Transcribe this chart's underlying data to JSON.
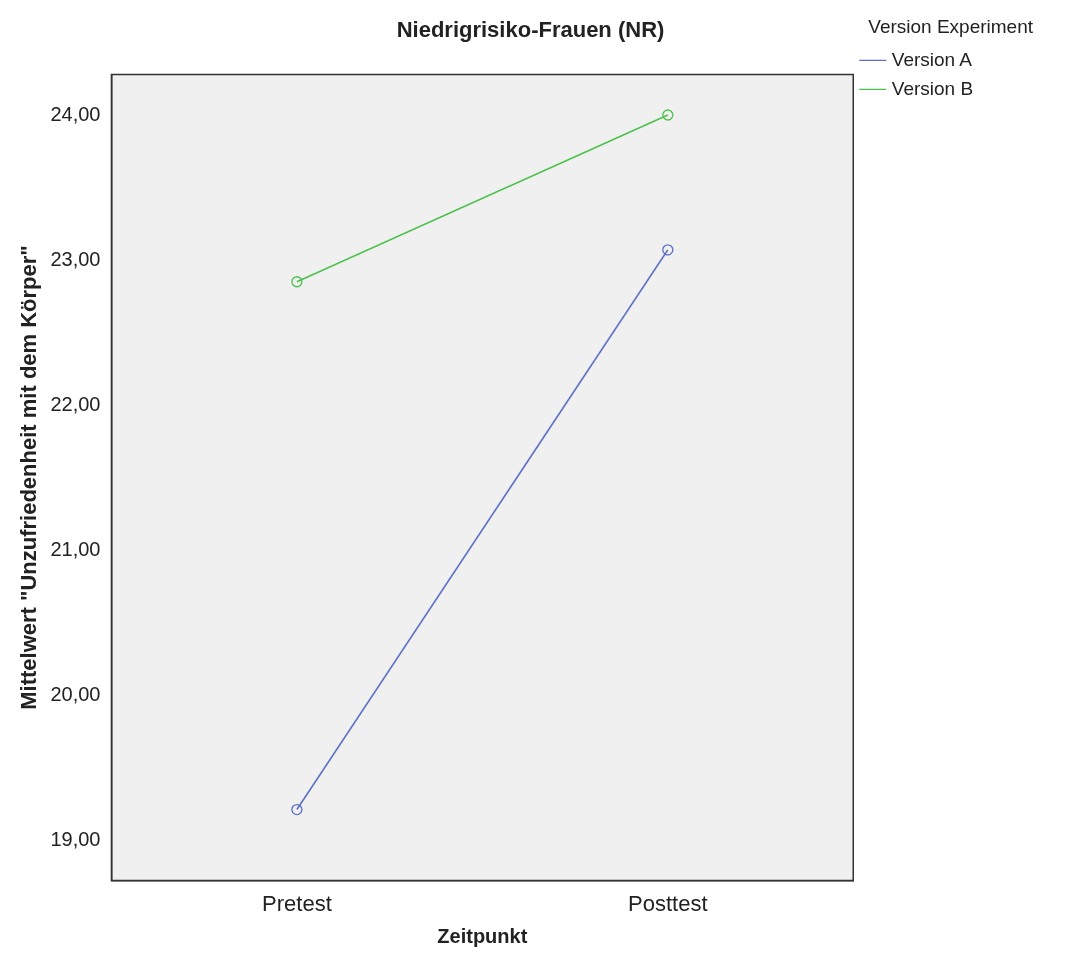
{
  "chart_data": {
    "type": "line",
    "title": "Niedrigrisiko-Frauen (NR)",
    "xlabel": "Zeitpunkt",
    "ylabel": "Mittelwert \"Unzufriedenheit mit dem Körper\"",
    "legend_title": "Version Experiment",
    "categories": [
      "Pretest",
      "Posttest"
    ],
    "series": [
      {
        "name": "Version A",
        "color": "#5b6fc6",
        "values": [
          19.21,
          23.07
        ]
      },
      {
        "name": "Version B",
        "color": "#4cc24c",
        "values": [
          22.85,
          24.0
        ]
      }
    ],
    "ylim": [
      18.72,
      24.28
    ],
    "yticks": [
      {
        "value": 19,
        "label": "19,00"
      },
      {
        "value": 20,
        "label": "20,00"
      },
      {
        "value": 21,
        "label": "21,00"
      },
      {
        "value": 22,
        "label": "22,00"
      },
      {
        "value": 23,
        "label": "23,00"
      },
      {
        "value": 24,
        "label": "24,00"
      }
    ],
    "grid": false,
    "legend": "top right",
    "marker": "circle",
    "line_style": "solid"
  }
}
